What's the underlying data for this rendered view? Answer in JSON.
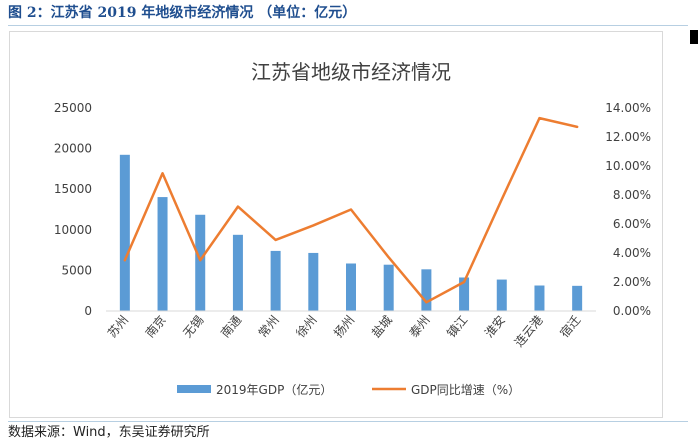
{
  "caption": {
    "figure_title": "图 2：江苏省 2019 年地级市经济情况 （单位：亿元）"
  },
  "source": {
    "text": "数据来源：Wind，东吴证券研究所"
  },
  "colors": {
    "bar": "#5b9bd5",
    "line": "#ed7d31",
    "title_text": "#1f4e8f"
  },
  "chart_data": {
    "type": "bar",
    "title": "江苏省地级市经济情况",
    "categories": [
      "苏州",
      "南京",
      "无锡",
      "南通",
      "常州",
      "徐州",
      "扬州",
      "盐城",
      "泰州",
      "镇江",
      "淮安",
      "连云港",
      "宿迁"
    ],
    "series": [
      {
        "name": "2019年GDP（亿元）",
        "type": "bar",
        "axis": "left",
        "values": [
          19236,
          14030,
          11852,
          9383,
          7400,
          7151,
          5850,
          5702,
          5133,
          4127,
          3871,
          3139,
          3099
        ]
      },
      {
        "name": "GDP同比增速（%）",
        "type": "line",
        "axis": "right",
        "values": [
          3.5,
          9.5,
          3.5,
          7.2,
          4.9,
          5.9,
          7.0,
          3.7,
          0.6,
          2.0,
          7.7,
          13.3,
          12.7
        ]
      }
    ],
    "y_left": {
      "ylim": [
        0,
        25000
      ],
      "ticks": [
        "0",
        "5000",
        "10000",
        "15000",
        "20000",
        "25000"
      ]
    },
    "y_right": {
      "ylim": [
        0,
        14
      ],
      "ticks": [
        "0.00%",
        "2.00%",
        "4.00%",
        "6.00%",
        "8.00%",
        "10.00%",
        "12.00%",
        "14.00%"
      ]
    },
    "legend_position": "bottom",
    "grid": false
  }
}
